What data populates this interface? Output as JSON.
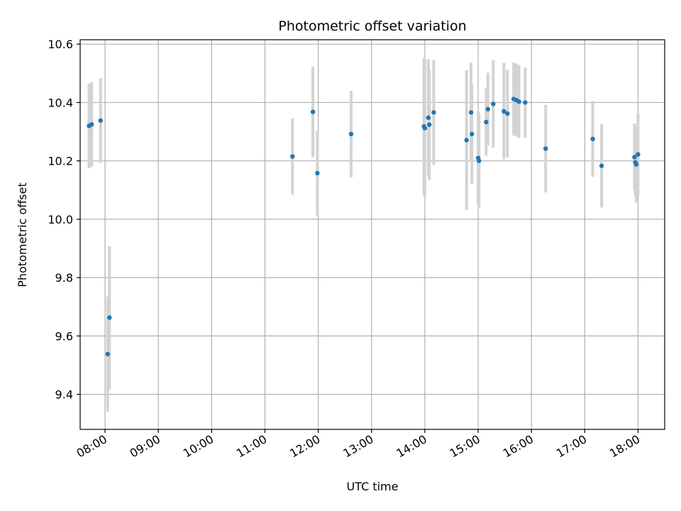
{
  "chart_data": {
    "type": "scatter",
    "title": "Photometric offset variation",
    "xlabel": "UTC time",
    "ylabel": "Photometric offset",
    "x_axis": "time",
    "xlim": [
      "07:32",
      "18:30"
    ],
    "ylim": [
      9.28,
      10.615
    ],
    "x_ticks": [
      "08:00",
      "09:00",
      "10:00",
      "11:00",
      "12:00",
      "13:00",
      "14:00",
      "15:00",
      "16:00",
      "17:00",
      "18:00"
    ],
    "y_ticks": [
      "9.4",
      "9.6",
      "9.8",
      "10.0",
      "10.2",
      "10.4",
      "10.6"
    ],
    "grid": true,
    "colors": {
      "point": "#1f77b4",
      "errorbar": "#d3d3d3",
      "grid": "#b0b0b0"
    },
    "points": [
      {
        "t": "07:42",
        "y": 10.32,
        "err": 0.145
      },
      {
        "t": "07:45",
        "y": 10.325,
        "err": 0.145
      },
      {
        "t": "07:55",
        "y": 10.338,
        "err": 0.145
      },
      {
        "t": "08:03",
        "y": 9.538,
        "err": 0.197
      },
      {
        "t": "08:05",
        "y": 9.663,
        "err": 0.245
      },
      {
        "t": "11:31",
        "y": 10.215,
        "err": 0.13
      },
      {
        "t": "11:54",
        "y": 10.368,
        "err": 0.155
      },
      {
        "t": "11:59",
        "y": 10.158,
        "err": 0.145
      },
      {
        "t": "12:37",
        "y": 10.292,
        "err": 0.148
      },
      {
        "t": "13:59",
        "y": 10.318,
        "err": 0.235
      },
      {
        "t": "14:00",
        "y": 10.312,
        "err": 0.238
      },
      {
        "t": "14:04",
        "y": 10.348,
        "err": 0.2
      },
      {
        "t": "14:05",
        "y": 10.324,
        "err": 0.19
      },
      {
        "t": "14:10",
        "y": 10.366,
        "err": 0.18
      },
      {
        "t": "14:47",
        "y": 10.271,
        "err": 0.24
      },
      {
        "t": "14:52",
        "y": 10.366,
        "err": 0.17
      },
      {
        "t": "14:53",
        "y": 10.292,
        "err": 0.17
      },
      {
        "t": "15:00",
        "y": 10.21,
        "err": 0.16
      },
      {
        "t": "15:01",
        "y": 10.2,
        "err": 0.16
      },
      {
        "t": "15:09",
        "y": 10.333,
        "err": 0.115
      },
      {
        "t": "15:11",
        "y": 10.377,
        "err": 0.125
      },
      {
        "t": "15:17",
        "y": 10.395,
        "err": 0.15
      },
      {
        "t": "15:29",
        "y": 10.37,
        "err": 0.165
      },
      {
        "t": "15:33",
        "y": 10.362,
        "err": 0.15
      },
      {
        "t": "15:40",
        "y": 10.412,
        "err": 0.125
      },
      {
        "t": "15:43",
        "y": 10.408,
        "err": 0.125
      },
      {
        "t": "15:46",
        "y": 10.403,
        "err": 0.125
      },
      {
        "t": "15:53",
        "y": 10.4,
        "err": 0.12
      },
      {
        "t": "16:16",
        "y": 10.242,
        "err": 0.15
      },
      {
        "t": "17:09",
        "y": 10.275,
        "err": 0.13
      },
      {
        "t": "17:19",
        "y": 10.183,
        "err": 0.143
      },
      {
        "t": "17:56",
        "y": 10.213,
        "err": 0.115
      },
      {
        "t": "17:57",
        "y": 10.195,
        "err": 0.115
      },
      {
        "t": "17:58",
        "y": 10.188,
        "err": 0.13
      },
      {
        "t": "18:00",
        "y": 10.222,
        "err": 0.14
      }
    ]
  }
}
